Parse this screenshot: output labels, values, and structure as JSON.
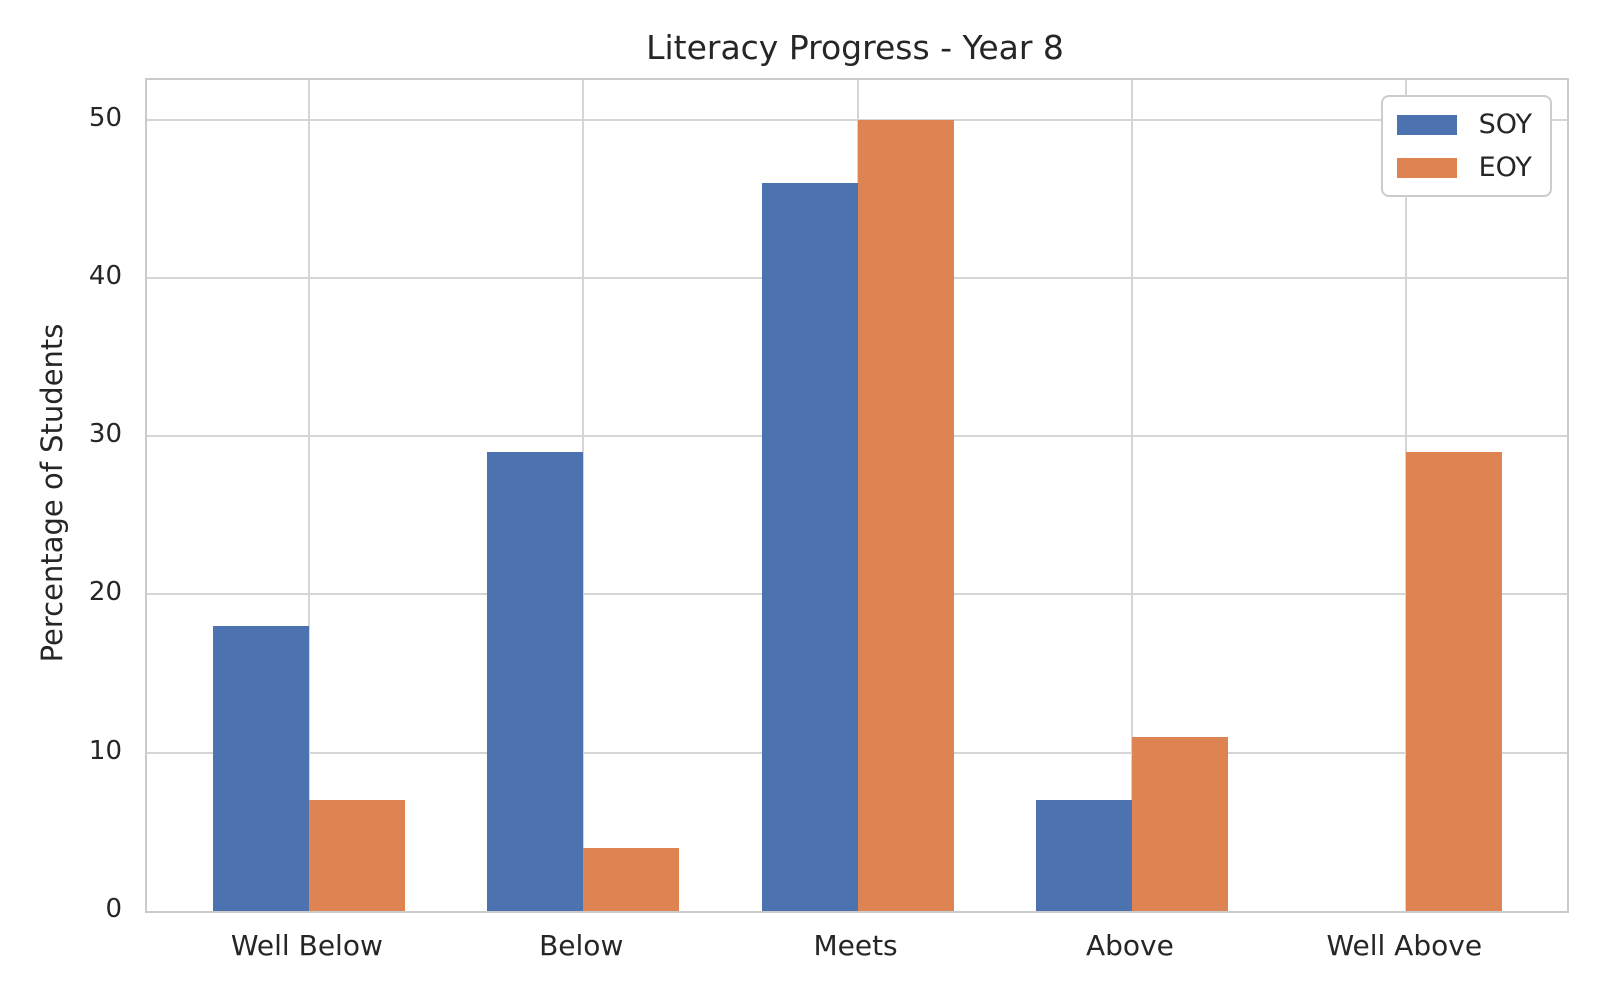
{
  "chart_data": {
    "type": "bar",
    "title": "Literacy Progress - Year 8",
    "xlabel": "",
    "ylabel": "Percentage of Students",
    "categories": [
      "Well Below",
      "Below",
      "Meets",
      "Above",
      "Well Above"
    ],
    "series": [
      {
        "name": "SOY",
        "color": "#4C72B0",
        "values": [
          18,
          29,
          46,
          7,
          0
        ]
      },
      {
        "name": "EOY",
        "color": "#DD8452",
        "values": [
          7,
          4,
          50,
          11,
          29
        ]
      }
    ],
    "yticks": [
      0,
      10,
      20,
      30,
      40,
      50
    ],
    "ylim": [
      0,
      52.5
    ],
    "grid": true,
    "legend_position": "upper right",
    "grid_color": "#d5d5d5",
    "spine_color": "#cbcbcb",
    "text_color": "#262626",
    "background_color": "#ffffff"
  }
}
